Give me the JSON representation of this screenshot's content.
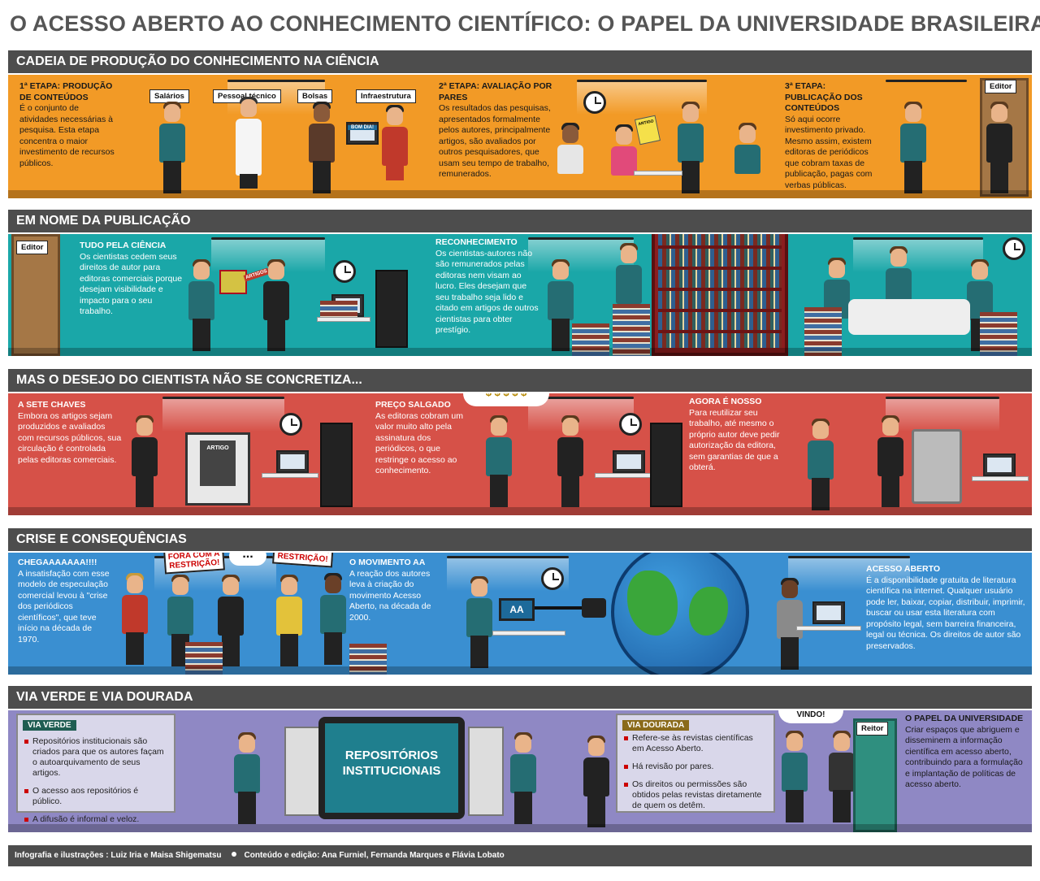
{
  "title": "O ACESSO ABERTO AO CONHECIMENTO CIENTÍFICO: O PAPEL DA UNIVERSIDADE BRASILEIRA",
  "colors": {
    "orange": "#f29a26",
    "teal": "#1aa7a8",
    "red": "#d65148",
    "blue": "#3a8fd1",
    "lavender": "#8f88c4",
    "header": "#4d4d4d"
  },
  "sections": [
    {
      "heading": "CADEIA DE PRODUÇÃO DO CONHECIMENTO NA CIÊNCIA",
      "blocks": [
        {
          "title": "1ª ETAPA: PRODUÇÃO DE CONTEÚDOS",
          "body": "É o conjunto de atividades necessárias à pesquisa. Esta etapa concentra o maior investimento de recursos públicos."
        },
        {
          "title": "2ª ETAPA: AVALIAÇÃO POR PARES",
          "body": "Os resultados das pesquisas, apresentados formalmente pelos autores, principalmente artigos, são avaliados por outros pesquisadores, que usam seu tempo de trabalho, remunerados."
        },
        {
          "title": "3ª ETAPA: PUBLICAÇÃO DOS CONTEÚDOS",
          "body": "Só aqui ocorre investimento privado. Mesmo assim, existem editoras de periódicos que cobram taxas de publicação, pagas com verbas públicas."
        }
      ],
      "tags": [
        "Salários",
        "Pessoal técnico",
        "Bolsas",
        "Infraestrutura",
        "Editor"
      ],
      "speech": "BOM DIA!",
      "paper_label": "ARTIGO"
    },
    {
      "heading": "EM NOME DA PUBLICAÇÃO",
      "blocks": [
        {
          "title": "TUDO PELA CIÊNCIA",
          "body": "Os cientistas cedem seus direitos de autor para editoras comerciais porque desejam visibilidade e impacto para o seu trabalho."
        },
        {
          "title": "RECONHECIMENTO",
          "body": "Os cientistas-autores não são remunerados pelas editoras nem visam ao lucro. Eles desejam que seu trabalho seja lido e citado em artigos de outros cientistas para obter prestígio."
        }
      ],
      "tags": [
        "Editor"
      ],
      "paper_label": "ARTIGOS"
    },
    {
      "heading": "MAS O DESEJO DO CIENTISTA NÃO SE CONCRETIZA...",
      "blocks": [
        {
          "title": "A SETE CHAVES",
          "body": "Embora os artigos sejam produzidos e avaliados com recursos públicos, sua circulação é controlada pelas editoras comerciais."
        },
        {
          "title": "PREÇO SALGADO",
          "body": "As editoras cobram um valor muito alto pela assinatura dos periódicos, o que restringe o acesso ao conhecimento."
        },
        {
          "title": "AGORA É NOSSO",
          "body": "Para reutilizar seu trabalho, até mesmo o próprio autor deve pedir autorização da editora, sem garantias de que a obterá."
        }
      ],
      "paper_label": "ARTIGO"
    },
    {
      "heading": "CRISE E CONSEQUÊNCIAS",
      "blocks": [
        {
          "title": "CHEGAAAAAAA!!!!",
          "body": "A insatisfação com esse modelo de especulação comercial levou à \"crise dos periódicos científicos\", que teve início na década de 1970."
        },
        {
          "title": "O MOVIMENTO AA",
          "body": "A reação dos autores leva à criação do movimento Acesso Aberto, na década de 2000."
        },
        {
          "title": "ACESSO ABERTO",
          "body": "É a disponibilidade gratuita de literatura científica na internet. Qualquer usuário pode ler, baixar, copiar, distribuir, imprimir, buscar ou usar esta literatura com propósito legal, sem barreira financeira, legal ou técnica. Os direitos de autor são preservados."
        }
      ],
      "signs": [
        "FORA COM A RESTRIÇÃO!",
        "FORA COM A RESTRIÇÃO!"
      ],
      "speech": "...",
      "screen": "AA"
    },
    {
      "heading": "VIA VERDE E VIA DOURADA",
      "via_verde": {
        "label": "VIA VERDE",
        "items": [
          "Repositórios institucionais são criados para que os autores façam o autoarquivamento de seus artigos.",
          "O acesso aos repositórios é público.",
          "A difusão é informal e veloz."
        ]
      },
      "screen": "REPOSITÓRIOS INSTITUCIONAIS",
      "via_dourada": {
        "label": "VIA DOURADA",
        "items": [
          "Refere-se às revistas científicas em Acesso Aberto.",
          "Há revisão por pares.",
          "Os direitos ou permissões são obtidos pelas revistas diretamente de quem os detêm."
        ]
      },
      "speech": "SEJA BEM VINDO!",
      "tag": "Reitor",
      "block": {
        "title": "O PAPEL DA UNIVERSIDADE",
        "body": "Criar espaços que abriguem e disseminem a informação científica em acesso aberto, contribuindo para a formulação e implantação de políticas de acesso aberto."
      }
    }
  ],
  "footer": {
    "left": "Infografia e ilustrações : Luiz Iria e Maisa Shigematsu",
    "right": "Conteúdo e edição: Ana Furniel, Fernanda Marques e Flávia Lobato"
  }
}
